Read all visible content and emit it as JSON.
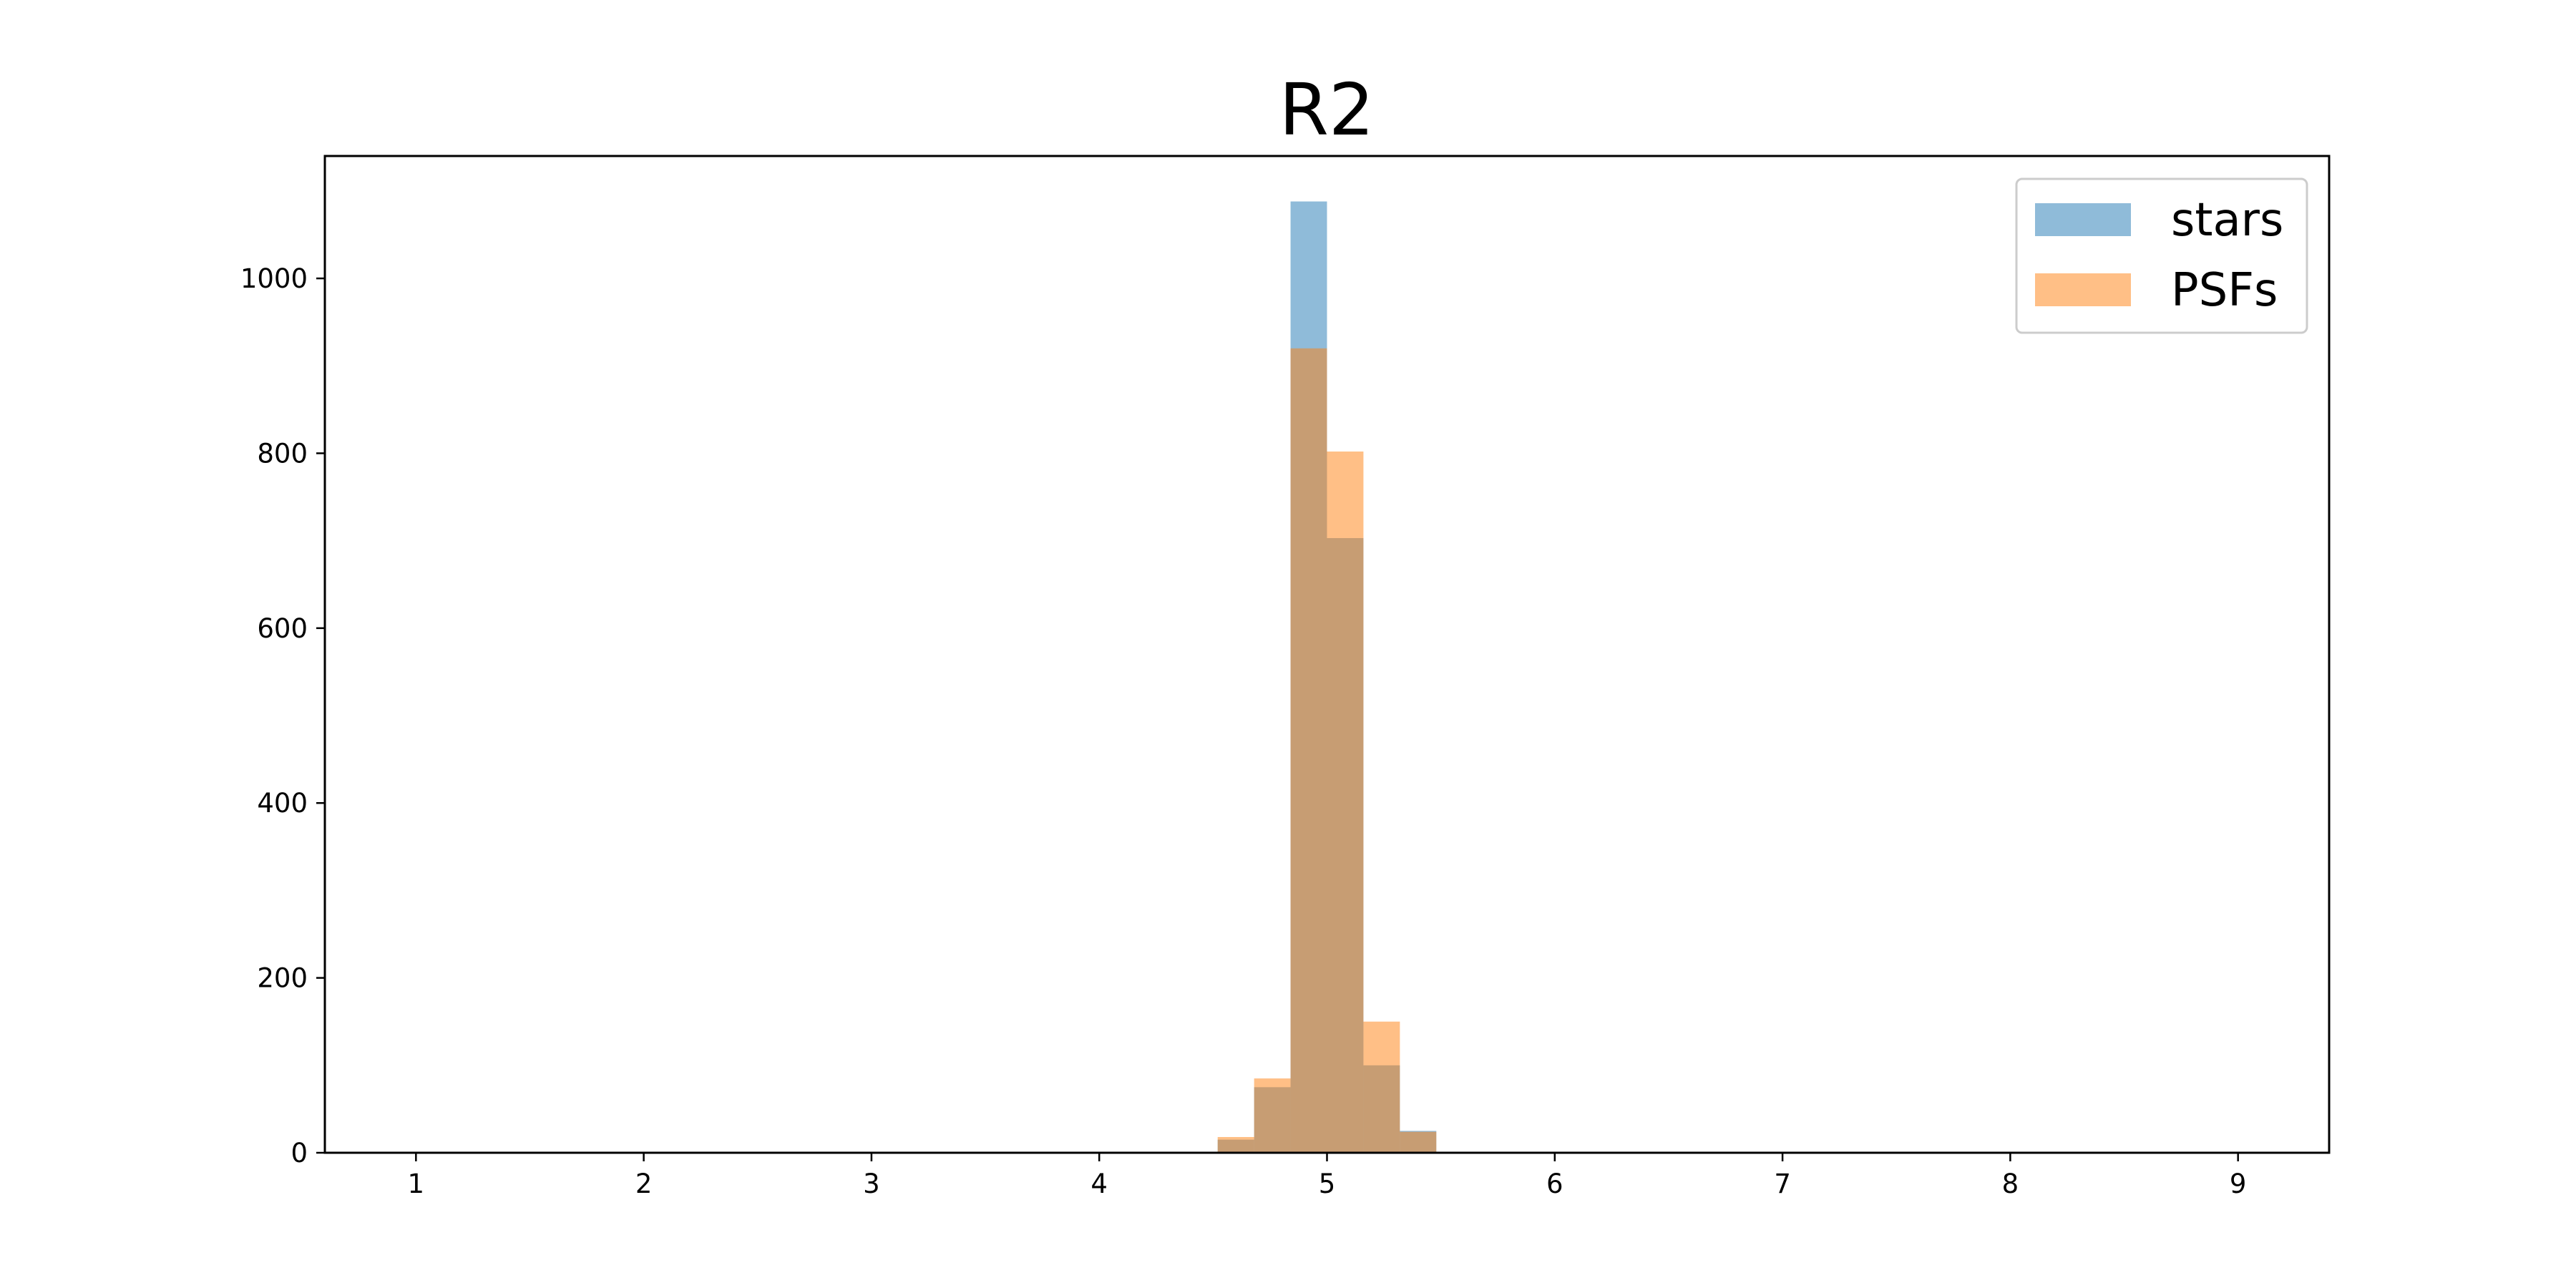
{
  "chart_data": {
    "type": "bar",
    "title": "R2",
    "xlabel": "",
    "ylabel": "",
    "xlim": [
      0.6,
      9.4
    ],
    "ylim": [
      0,
      1140
    ],
    "xticks": [
      1,
      2,
      3,
      4,
      5,
      6,
      7,
      8,
      9
    ],
    "yticks": [
      0,
      200,
      400,
      600,
      800,
      1000
    ],
    "grid": false,
    "legend_position": "top-right",
    "bin_edges": [
      4.52,
      4.68,
      4.84,
      5.0,
      5.16,
      5.32,
      5.48
    ],
    "series": [
      {
        "name": "stars",
        "color": "#1f77b4",
        "opacity": 0.5,
        "values": [
          15,
          75,
          1088,
          703,
          100,
          25
        ]
      },
      {
        "name": "PSFs",
        "color": "#ff7f0e",
        "opacity": 0.5,
        "values": [
          18,
          85,
          920,
          802,
          150,
          24
        ]
      }
    ]
  }
}
